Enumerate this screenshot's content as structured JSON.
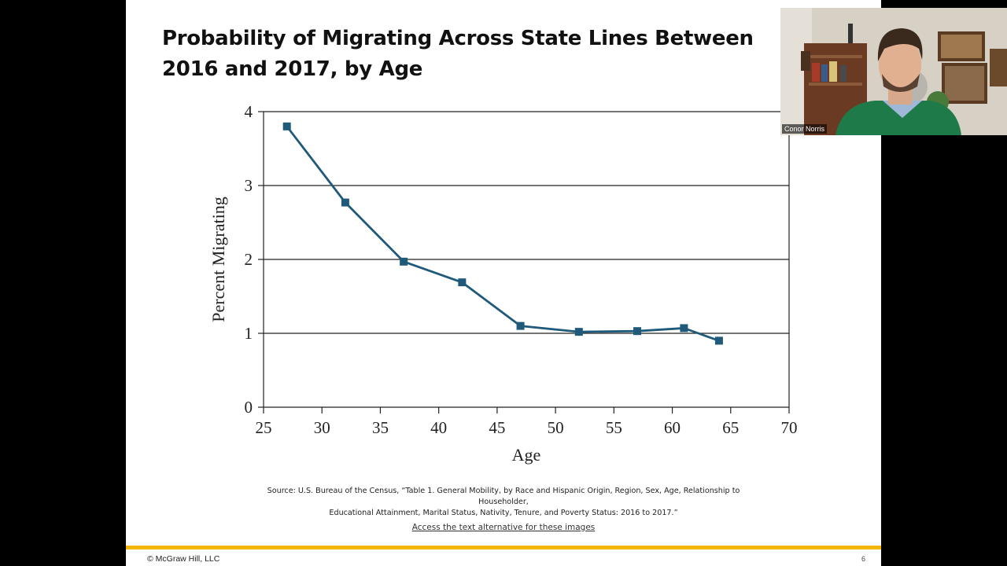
{
  "slide": {
    "title": "Probability of Migrating Across State Lines Between 2016 and 2017, by Age",
    "source_line1": "Source: U.S. Bureau of the Census, “Table 1. General Mobility, by Race and Hispanic Origin, Region, Sex, Age, Relationship to Householder,",
    "source_line2": "Educational Attainment, Marital Status, Nativity, Tenure, and Poverty Status: 2016 to 2017.”",
    "alt_link": "Access the text alternative for these images",
    "copyright": "© McGraw Hill, LLC",
    "page_number": "6",
    "accent_color": "#f2b705"
  },
  "video": {
    "participant_name": "Conor Norris"
  },
  "chart_data": {
    "type": "line",
    "title": "Probability of Migrating Across State Lines Between 2016 and 2017, by Age",
    "xlabel": "Age",
    "ylabel": "Percent Migrating",
    "xlim": [
      25,
      70
    ],
    "ylim": [
      0,
      4
    ],
    "xticks": [
      25,
      30,
      35,
      40,
      45,
      50,
      55,
      60,
      65,
      70
    ],
    "yticks": [
      0,
      1,
      2,
      3,
      4
    ],
    "grid": "horizontal",
    "line_color": "#1f5a7a",
    "x": [
      27,
      32,
      37,
      42,
      47,
      52,
      57,
      61,
      64
    ],
    "series": [
      {
        "values": [
          3.8,
          2.77,
          1.97,
          1.69,
          1.1,
          1.02,
          1.03,
          1.07,
          0.9
        ]
      }
    ]
  }
}
